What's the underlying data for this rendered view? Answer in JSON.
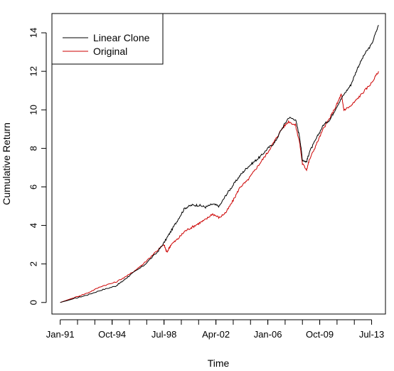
{
  "chart_data": {
    "type": "line",
    "title": "",
    "xlabel": "Time",
    "ylabel": "Cumulative Return",
    "xlim": [
      1990.4,
      2014.5
    ],
    "ylim": [
      -0.6,
      15.0
    ],
    "grid": false,
    "legend_position": "top-left",
    "x_ticks": [
      {
        "x": 1991.0,
        "label": "Jan-91"
      },
      {
        "x": 1994.75,
        "label": "Oct-94"
      },
      {
        "x": 1998.5,
        "label": "Jul-98"
      },
      {
        "x": 2002.25,
        "label": "Apr-02"
      },
      {
        "x": 2006.0,
        "label": "Jan-06"
      },
      {
        "x": 2009.75,
        "label": "Oct-09"
      },
      {
        "x": 2013.5,
        "label": "Jul-13"
      }
    ],
    "y_ticks": [
      0,
      2,
      4,
      6,
      8,
      10,
      12,
      14
    ],
    "series": [
      {
        "name": "Linear Clone",
        "color": "#000000",
        "points": [
          [
            1991.0,
            0.0
          ],
          [
            1992.0,
            0.2
          ],
          [
            1993.0,
            0.4
          ],
          [
            1994.0,
            0.65
          ],
          [
            1995.0,
            0.85
          ],
          [
            1995.5,
            1.1
          ],
          [
            1996.0,
            1.4
          ],
          [
            1997.0,
            1.9
          ],
          [
            1998.0,
            2.6
          ],
          [
            1998.5,
            3.1
          ],
          [
            1999.0,
            3.7
          ],
          [
            1999.5,
            4.3
          ],
          [
            2000.0,
            4.9
          ],
          [
            2000.5,
            5.05
          ],
          [
            2001.0,
            5.05
          ],
          [
            2001.5,
            4.95
          ],
          [
            2002.0,
            5.1
          ],
          [
            2002.5,
            5.0
          ],
          [
            2003.0,
            5.6
          ],
          [
            2003.5,
            6.1
          ],
          [
            2004.0,
            6.6
          ],
          [
            2004.5,
            7.0
          ],
          [
            2005.0,
            7.3
          ],
          [
            2005.5,
            7.6
          ],
          [
            2006.0,
            8.0
          ],
          [
            2006.5,
            8.3
          ],
          [
            2007.0,
            9.0
          ],
          [
            2007.5,
            9.6
          ],
          [
            2008.0,
            9.5
          ],
          [
            2008.3,
            8.6
          ],
          [
            2008.5,
            7.4
          ],
          [
            2008.8,
            7.3
          ],
          [
            2009.0,
            7.8
          ],
          [
            2009.5,
            8.5
          ],
          [
            2010.0,
            9.2
          ],
          [
            2010.5,
            9.5
          ],
          [
            2011.0,
            10.2
          ],
          [
            2011.5,
            10.8
          ],
          [
            2012.0,
            11.3
          ],
          [
            2012.5,
            12.2
          ],
          [
            2013.0,
            12.9
          ],
          [
            2013.5,
            13.4
          ],
          [
            2014.0,
            14.4
          ]
        ]
      },
      {
        "name": "Original",
        "color": "#cc0000",
        "points": [
          [
            1991.0,
            0.0
          ],
          [
            1992.0,
            0.25
          ],
          [
            1993.0,
            0.5
          ],
          [
            1994.0,
            0.85
          ],
          [
            1995.0,
            1.05
          ],
          [
            1996.0,
            1.45
          ],
          [
            1997.0,
            2.0
          ],
          [
            1998.0,
            2.7
          ],
          [
            1998.5,
            3.0
          ],
          [
            1998.7,
            2.6
          ],
          [
            1999.0,
            3.0
          ],
          [
            1999.5,
            3.3
          ],
          [
            2000.0,
            3.7
          ],
          [
            2000.5,
            3.9
          ],
          [
            2001.0,
            4.1
          ],
          [
            2001.5,
            4.3
          ],
          [
            2002.0,
            4.6
          ],
          [
            2002.5,
            4.4
          ],
          [
            2003.0,
            4.7
          ],
          [
            2003.5,
            5.3
          ],
          [
            2004.0,
            6.0
          ],
          [
            2004.5,
            6.3
          ],
          [
            2005.0,
            6.8
          ],
          [
            2005.5,
            7.3
          ],
          [
            2006.0,
            7.8
          ],
          [
            2006.5,
            8.4
          ],
          [
            2007.0,
            9.0
          ],
          [
            2007.5,
            9.4
          ],
          [
            2008.0,
            9.2
          ],
          [
            2008.3,
            8.3
          ],
          [
            2008.5,
            7.2
          ],
          [
            2008.8,
            6.9
          ],
          [
            2009.0,
            7.4
          ],
          [
            2009.5,
            8.2
          ],
          [
            2010.0,
            9.0
          ],
          [
            2010.5,
            9.6
          ],
          [
            2011.0,
            10.3
          ],
          [
            2011.3,
            10.8
          ],
          [
            2011.5,
            10.0
          ],
          [
            2012.0,
            10.2
          ],
          [
            2012.5,
            10.6
          ],
          [
            2013.0,
            11.0
          ],
          [
            2013.5,
            11.4
          ],
          [
            2014.0,
            12.0
          ]
        ]
      }
    ]
  }
}
